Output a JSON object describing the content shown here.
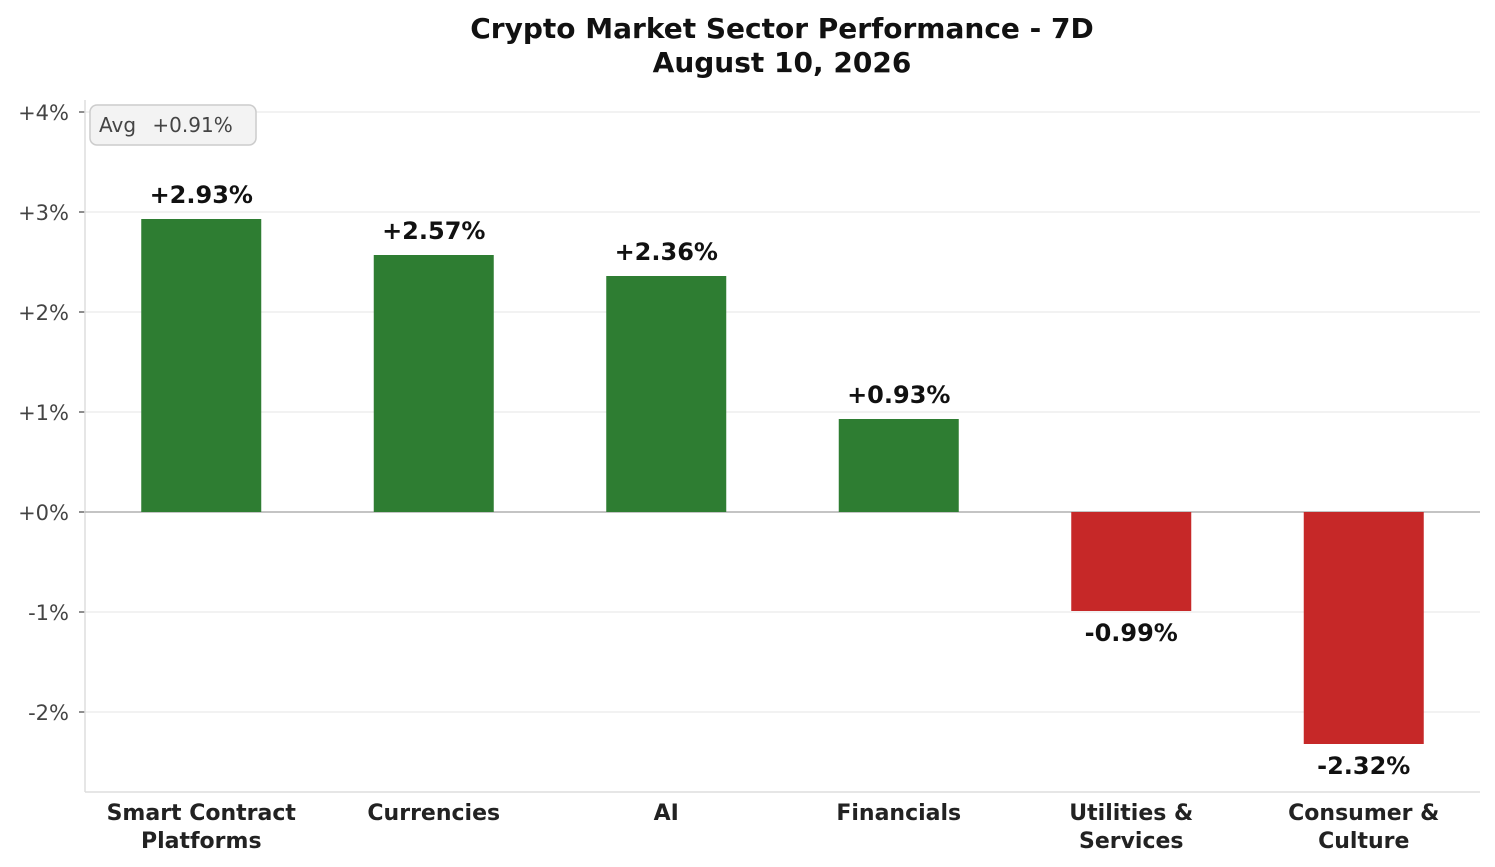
{
  "chart_data": {
    "type": "bar",
    "title": "Crypto Market Sector Performance - 7D",
    "subtitle": "August 10, 2026",
    "xlabel": "",
    "ylabel": "",
    "categories": [
      [
        "Smart Contract",
        "Platforms"
      ],
      [
        "Currencies"
      ],
      [
        "AI"
      ],
      [
        "Financials"
      ],
      [
        "Utilities &",
        "Services"
      ],
      [
        "Consumer &",
        "Culture"
      ]
    ],
    "values": [
      2.93,
      2.57,
      2.36,
      0.93,
      -0.99,
      -2.32
    ],
    "value_labels": [
      "+2.93%",
      "+2.57%",
      "+2.36%",
      "+0.93%",
      "-0.99%",
      "-2.32%"
    ],
    "ylim": [
      -2.8,
      4.2
    ],
    "yticks": [
      -2,
      -1,
      0,
      1,
      2,
      3,
      4
    ],
    "ytick_labels": [
      "-2%",
      "-1%",
      "+0%",
      "+1%",
      "+2%",
      "+3%",
      "+4%"
    ],
    "grid": true,
    "positive_color": "#2e7d32",
    "negative_color": "#c62828",
    "annotation": {
      "label": "Avg",
      "value": 0.91,
      "value_label": "+0.91%",
      "placement": "top-left"
    }
  }
}
